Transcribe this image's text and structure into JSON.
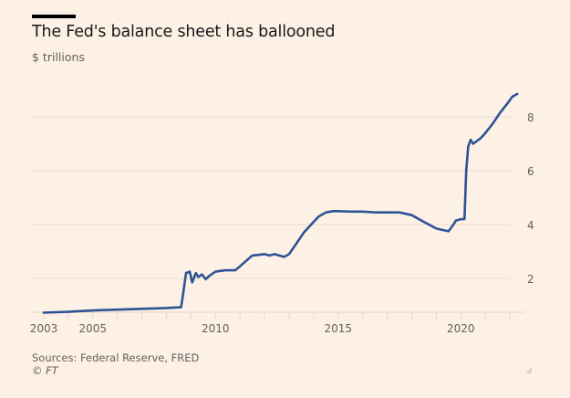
{
  "header": {
    "title": "The Fed's balance sheet has ballooned",
    "subtitle": "$ trillions"
  },
  "footer": {
    "source": "Sources: Federal Reserve, FRED",
    "copyright": "© FT"
  },
  "colors": {
    "line": "#2e5395",
    "grid": "#e9ddd2",
    "background": "#fdf1e6"
  },
  "chart_data": {
    "type": "line",
    "title": "The Fed's balance sheet has ballooned",
    "subtitle": "$ trillions",
    "xlabel": "",
    "ylabel": "$ trillions",
    "xlim": [
      2003,
      2022.4
    ],
    "ylim": [
      0.75,
      9.0
    ],
    "grid": true,
    "y_axis_side": "right",
    "x_ticks": [
      2003,
      2005,
      2010,
      2015,
      2020
    ],
    "x_tick_labels": [
      "2003",
      "2005",
      "2010",
      "2015",
      "2020"
    ],
    "x_minor_ticks": [
      2004,
      2006,
      2007,
      2008,
      2009,
      2011,
      2012,
      2013,
      2014,
      2016,
      2017,
      2018,
      2019,
      2021,
      2022
    ],
    "y_ticks": [
      2,
      4,
      6,
      8
    ],
    "y_tick_labels": [
      "2",
      "4",
      "6",
      "8"
    ],
    "series": [
      {
        "name": "Fed balance sheet",
        "x": [
          2003.0,
          2004.0,
          2005.0,
          2006.0,
          2007.0,
          2008.0,
          2008.6,
          2008.7,
          2008.8,
          2008.95,
          2009.05,
          2009.2,
          2009.3,
          2009.45,
          2009.6,
          2009.75,
          2010.0,
          2010.4,
          2010.8,
          2011.0,
          2011.5,
          2012.0,
          2012.2,
          2012.4,
          2012.8,
          2013.0,
          2013.3,
          2013.6,
          2013.9,
          2014.2,
          2014.5,
          2014.8,
          2015.0,
          2015.5,
          2016.0,
          2016.5,
          2017.0,
          2017.5,
          2018.0,
          2018.5,
          2019.0,
          2019.5,
          2019.7,
          2019.8,
          2020.0,
          2020.15,
          2020.22,
          2020.3,
          2020.4,
          2020.5,
          2020.8,
          2021.0,
          2021.3,
          2021.6,
          2021.9,
          2022.1,
          2022.3
        ],
        "y": [
          0.73,
          0.76,
          0.81,
          0.84,
          0.87,
          0.9,
          0.93,
          1.55,
          2.2,
          2.25,
          1.85,
          2.2,
          2.05,
          2.15,
          1.97,
          2.1,
          2.25,
          2.3,
          2.3,
          2.45,
          2.85,
          2.9,
          2.85,
          2.9,
          2.8,
          2.9,
          3.3,
          3.7,
          4.0,
          4.3,
          4.45,
          4.5,
          4.5,
          4.48,
          4.48,
          4.45,
          4.45,
          4.45,
          4.35,
          4.1,
          3.85,
          3.75,
          4.0,
          4.15,
          4.2,
          4.2,
          6.0,
          6.9,
          7.15,
          7.0,
          7.2,
          7.4,
          7.75,
          8.15,
          8.5,
          8.75,
          8.85
        ]
      }
    ]
  }
}
